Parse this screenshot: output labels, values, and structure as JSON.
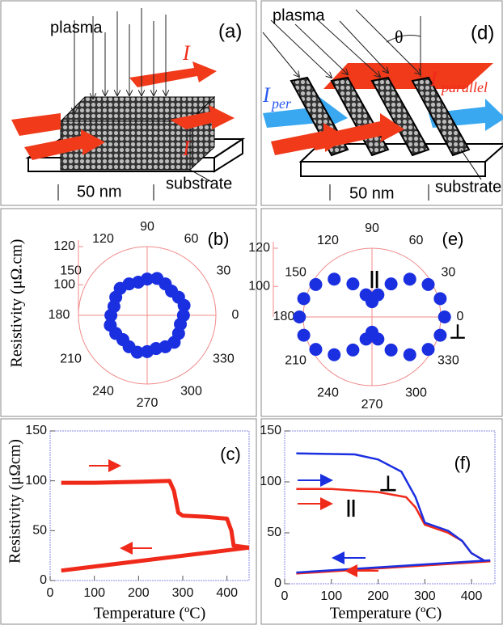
{
  "diagram_a": {
    "label": "(a)",
    "plasma": "plasma",
    "current_top": "I",
    "current_bottom": "I",
    "scale": "50 nm",
    "substrate": "substrate"
  },
  "diagram_d": {
    "label": "(d)",
    "plasma": "plasma",
    "angle": "θ",
    "current_parallel": "I",
    "current_parallel_sub": "parallel",
    "current_per": "I",
    "current_per_sub": "per",
    "scale": "50 nm",
    "substrate": "substrate"
  },
  "chart_data": [
    {
      "type": "polar",
      "label": "(b)",
      "y_label": "Resistivity  (μΩ.cm)",
      "color": "#1a2fe0",
      "angle_ticks": [
        0,
        30,
        60,
        90,
        120,
        150,
        180,
        210,
        240,
        270,
        300,
        330
      ],
      "rlim": [
        84,
        120
      ],
      "rticks": [
        100,
        120
      ],
      "series": [
        {
          "theta": [
            0,
            15,
            30,
            45,
            60,
            75,
            90,
            105,
            120,
            135,
            150,
            165,
            180,
            195,
            210,
            225,
            240,
            255,
            270,
            285,
            300,
            315,
            330,
            345
          ],
          "values": [
            103,
            104,
            103,
            102,
            103,
            104,
            103,
            102,
            103,
            104,
            103,
            102,
            103,
            104,
            103,
            102,
            103,
            104,
            103,
            102,
            103,
            104,
            103,
            102
          ]
        }
      ]
    },
    {
      "type": "polar",
      "label": "(e)",
      "color": "#1a2fe0",
      "angle_ticks": [
        0,
        30,
        60,
        90,
        120,
        150,
        180,
        210,
        240,
        270,
        300,
        330
      ],
      "rlim": [
        84,
        120
      ],
      "rticks": [
        100,
        120
      ],
      "annotations": [
        "||",
        "⊥"
      ],
      "series": [
        {
          "theta": [
            0,
            15,
            30,
            45,
            60,
            75,
            90,
            105,
            120,
            135,
            150,
            165,
            180,
            195,
            210,
            225,
            240,
            255,
            270,
            285,
            300,
            315,
            330,
            345
          ],
          "values": [
            122,
            121,
            118,
            112,
            104,
            96,
            92,
            96,
            104,
            112,
            118,
            121,
            122,
            121,
            118,
            112,
            104,
            96,
            92,
            96,
            104,
            112,
            118,
            121
          ]
        }
      ]
    },
    {
      "type": "line",
      "label": "(c)",
      "x_label": "Temperature (ºC)",
      "y_label": "Resistivity  (μΩcm)",
      "xlim": [
        0,
        450
      ],
      "ylim": [
        0,
        150
      ],
      "xticks": [
        0,
        100,
        200,
        300,
        400
      ],
      "yticks": [
        0,
        50,
        100,
        150
      ],
      "series": [
        {
          "color": "#f02a1a",
          "x": [
            25,
            100,
            200,
            270,
            280,
            290,
            300,
            350,
            400,
            410,
            415,
            450
          ],
          "values": [
            98,
            98,
            99,
            100,
            90,
            68,
            65,
            64,
            62,
            50,
            35,
            33
          ]
        },
        {
          "color": "#f02a1a",
          "x": [
            450,
            25
          ],
          "values": [
            33,
            10
          ]
        }
      ]
    },
    {
      "type": "line",
      "label": "(f)",
      "x_label": "Temperature (ºC)",
      "xlim": [
        0,
        450
      ],
      "ylim": [
        0,
        150
      ],
      "xticks": [
        0,
        100,
        200,
        300,
        400
      ],
      "yticks": [
        0,
        50,
        100,
        150
      ],
      "annotations": [
        "⊥",
        "||"
      ],
      "series": [
        {
          "color": "#f02a1a",
          "x": [
            25,
            100,
            200,
            260,
            280,
            300,
            350,
            380,
            400,
            430,
            440
          ],
          "values": [
            93,
            93,
            90,
            85,
            75,
            58,
            50,
            42,
            30,
            22,
            22
          ]
        },
        {
          "color": "#1a2fe0",
          "x": [
            25,
            150,
            200,
            250,
            280,
            300,
            350,
            380,
            400,
            430,
            440
          ],
          "values": [
            128,
            127,
            122,
            110,
            85,
            60,
            52,
            42,
            30,
            22,
            22
          ]
        },
        {
          "color": "#f02a1a",
          "x": [
            440,
            25
          ],
          "values": [
            22,
            10
          ]
        },
        {
          "color": "#1a2fe0",
          "x": [
            440,
            25
          ],
          "values": [
            23,
            11
          ]
        }
      ]
    }
  ]
}
